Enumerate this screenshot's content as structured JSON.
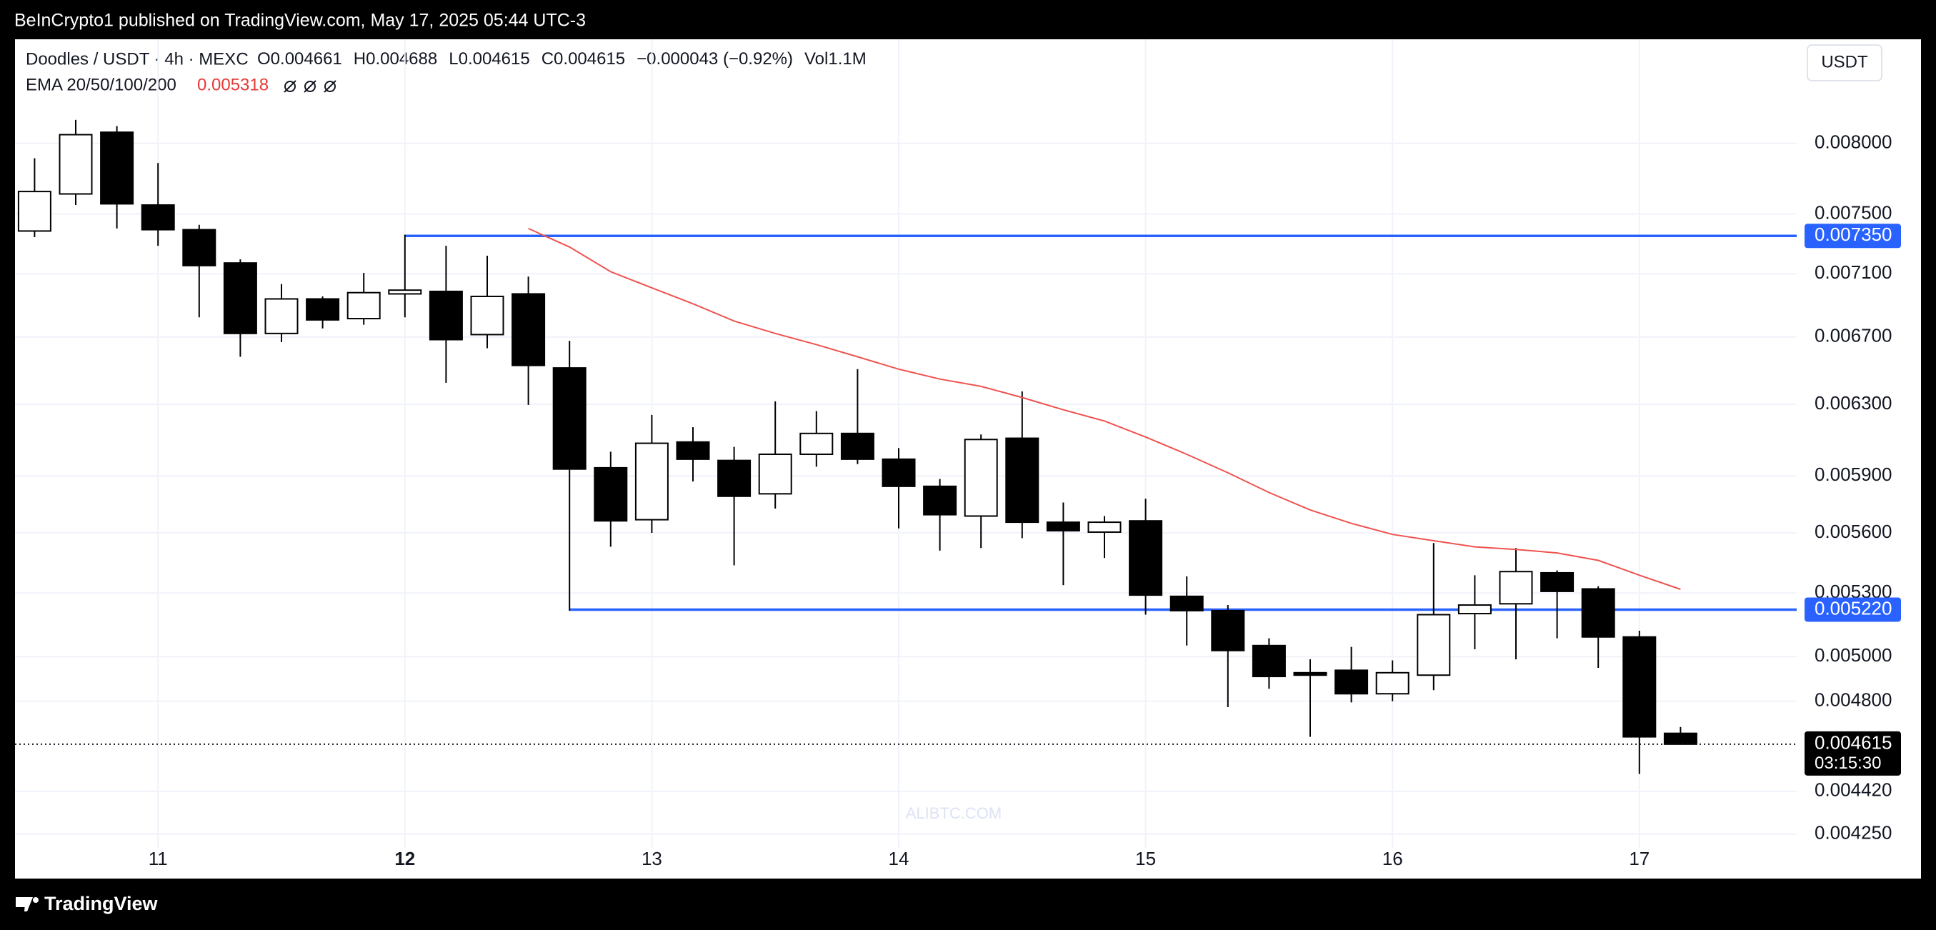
{
  "header": "BeInCrypto1 published on TradingView.com, May 17, 2025 05:44 UTC-3",
  "footer": "TradingView",
  "currency_button": "USDT",
  "watermark": "ALIBTC.COM",
  "chart_data": {
    "type": "candlestick",
    "legend": {
      "symbol": "Doodles / USDT · 4h · MEXC",
      "labels": [
        "O",
        "H",
        "L",
        "C"
      ],
      "change": "−0.000043 (−0.92%)",
      "volume": "Vol1.1M"
    },
    "categories": [
      null,
      null,
      null,
      "11",
      null,
      null,
      null,
      null,
      null,
      "12",
      null,
      null,
      null,
      null,
      null,
      "13",
      null,
      null,
      null,
      null,
      null,
      "14",
      null,
      null,
      null,
      null,
      null,
      "15",
      null,
      null,
      null,
      null,
      null,
      "16",
      null,
      null,
      null,
      null,
      null,
      "17",
      null
    ],
    "bold_categories": [
      "12"
    ],
    "open": [
      0.007383,
      0.007638,
      0.008082,
      0.007561,
      0.007392,
      0.00717,
      0.006722,
      0.006938,
      0.006814,
      0.00697,
      0.006986,
      0.006715,
      0.00697,
      0.006513,
      0.005944,
      0.005668,
      0.006086,
      0.005984,
      0.005804,
      0.006018,
      0.006134,
      0.005991,
      0.005844,
      0.005687,
      0.006107,
      0.005655,
      0.005604,
      0.005662,
      0.005284,
      0.005215,
      0.005051,
      0.004927,
      0.004938,
      0.004833,
      0.004916,
      0.005201,
      0.005248,
      0.005399,
      0.00532,
      0.005091,
      0.004661
    ],
    "high": [
      0.007892,
      0.008174,
      0.008128,
      0.007857,
      0.007425,
      0.007194,
      0.007033,
      0.006954,
      0.007105,
      0.007358,
      0.007284,
      0.007218,
      0.007081,
      0.006677,
      0.006032,
      0.006239,
      0.006169,
      0.006059,
      0.006317,
      0.006261,
      0.006506,
      0.006052,
      0.005883,
      0.006128,
      0.006375,
      0.005758,
      0.005687,
      0.005778,
      0.005381,
      0.005242,
      0.005085,
      0.004988,
      0.005045,
      0.004983,
      0.005548,
      0.005387,
      0.005523,
      0.005411,
      0.005333,
      0.00512,
      0.004688
    ],
    "low": [
      0.007342,
      0.007561,
      0.0074,
      0.007284,
      0.006822,
      0.00658,
      0.006669,
      0.006753,
      0.006776,
      0.006822,
      0.006425,
      0.006632,
      0.006296,
      0.005215,
      0.005529,
      0.0056,
      0.00587,
      0.005436,
      0.005726,
      0.00595,
      0.005964,
      0.005623,
      0.00551,
      0.005523,
      0.005573,
      0.005338,
      0.005473,
      0.005196,
      0.005051,
      0.004774,
      0.004855,
      0.004646,
      0.004795,
      0.0048,
      0.004849,
      0.005034,
      0.004988,
      0.005085,
      0.004949,
      0.004491,
      0.004615
    ],
    "close": [
      0.007655,
      0.008064,
      0.007569,
      0.007392,
      0.007153,
      0.006722,
      0.006938,
      0.006806,
      0.006978,
      0.006994,
      0.006684,
      0.006954,
      0.006528,
      0.005937,
      0.005662,
      0.006079,
      0.005991,
      0.005791,
      0.006018,
      0.006134,
      0.005991,
      0.005844,
      0.005694,
      0.0061,
      0.005655,
      0.005611,
      0.005655,
      0.00529,
      0.005215,
      0.005028,
      0.00491,
      0.004916,
      0.004833,
      0.004927,
      0.005196,
      0.005242,
      0.005405,
      0.005308,
      0.005091,
      0.004646,
      0.004615
    ],
    "up_color": "#ffffff",
    "down_color": "#000000",
    "ema": {
      "name": "EMA 20/50/100/200",
      "color": "#ef5350",
      "values": [
        null,
        null,
        null,
        null,
        null,
        null,
        null,
        null,
        null,
        null,
        null,
        null,
        0.0074,
        0.007276,
        0.007113,
        0.007009,
        0.006907,
        0.006799,
        0.006722,
        0.006654,
        0.00658,
        0.006506,
        0.006447,
        0.006404,
        0.006339,
        0.006268,
        0.006204,
        0.006114,
        0.006018,
        0.005917,
        0.005811,
        0.005719,
        0.005649,
        0.005592,
        0.00556,
        0.005529,
        0.005516,
        0.005498,
        0.005461,
        0.005387,
        0.005318
      ]
    },
    "levels": [
      {
        "value": 0.00735,
        "label": "0.007350"
      },
      {
        "value": 0.00522,
        "label": "0.005220"
      }
    ],
    "level_color": "#2962ff",
    "countdown": "03:15:30",
    "log_scale": true,
    "grid": true,
    "ylim": [
      0.00423,
      0.0088
    ],
    "yticks": [
      {
        "value": 0.008,
        "label": "0.008000"
      },
      {
        "value": 0.0075,
        "label": "0.007500"
      },
      {
        "value": 0.0071,
        "label": "0.007100"
      },
      {
        "value": 0.0067,
        "label": "0.006700"
      },
      {
        "value": 0.0063,
        "label": "0.006300"
      },
      {
        "value": 0.0059,
        "label": "0.005900"
      },
      {
        "value": 0.0056,
        "label": "0.005600"
      },
      {
        "value": 0.0053,
        "label": "0.005300"
      },
      {
        "value": 0.005,
        "label": "0.005000"
      },
      {
        "value": 0.0048,
        "label": "0.004800"
      },
      {
        "value": 0.00442,
        "label": "0.004420"
      },
      {
        "value": 0.00425,
        "label": "0.004250"
      }
    ]
  }
}
